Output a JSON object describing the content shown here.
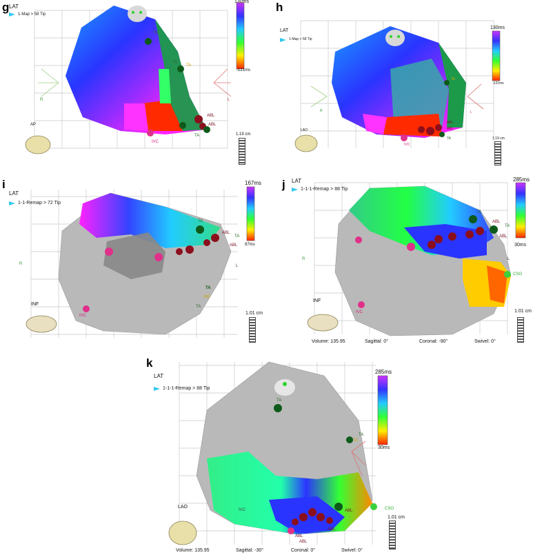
{
  "panels": {
    "g": {
      "letter": "g",
      "lat": "LAT",
      "map": "1-Map > 58 Tip",
      "cb_top": "130ms",
      "cb_bottom": "-121ms",
      "scale": "1.19 cm",
      "view": "AP",
      "labels": {
        "ta1": "TA",
        "ta2": "TA",
        "ta3": "TA",
        "ta4": "TA",
        "abl1": "ABL",
        "abl2": "ABL",
        "ivc": "IVC",
        "r": "R",
        "l": "L"
      }
    },
    "h": {
      "letter": "h",
      "lat": "LAT",
      "map": "1-Map > 58 Tip",
      "cb_top": "130ms",
      "cb_bottom": "-121ms",
      "scale": "1.19 cm",
      "view": "LAO",
      "labels": {
        "ta1": "TA",
        "ta2": "TA",
        "abl1": "ABL",
        "abl2": "ABL",
        "ivc": "IVC",
        "r": "R",
        "l": "L"
      }
    },
    "i": {
      "letter": "i",
      "lat": "LAT",
      "map": "1-1-Remap > 72 Tip",
      "cb_top": "167ms",
      "cb_bottom": "87ms",
      "scale": "1.01 cm",
      "view": "INF",
      "labels": {
        "ta1": "TA",
        "ta2": "TA",
        "ta3": "TA",
        "ta4": "TA",
        "abl1": "ABL",
        "abl2": "ABL",
        "his": "HIS",
        "ivc": "IVC",
        "r": "R",
        "l": "L"
      }
    },
    "j": {
      "letter": "j",
      "lat": "LAT",
      "map": "1-1-1-Remap > 88 Tip",
      "cb_top": "285ms",
      "cb_bottom": "30ms",
      "scale": "1.01 cm",
      "view": "INF",
      "labels": {
        "ta1": "TA",
        "ta2": "TA",
        "abl1": "ABL",
        "abl2": "ABL",
        "cso": "CSO",
        "ivc": "IVC",
        "r": "R",
        "l": "L"
      },
      "footer": {
        "volume": "Volume: 135.95",
        "sagittal": "Sagittal: 0°",
        "coronal": "Coronal: -90°",
        "swivel": "Swivel: 0°"
      }
    },
    "k": {
      "letter": "k",
      "lat": "LAT",
      "map": "1-1-1-Remap > 88 Tip",
      "cb_top": "285ms",
      "cb_bottom": "30ms",
      "scale": "1.01 cm",
      "view": "LAO",
      "labels": {
        "ta1": "TA",
        "ta2": "TA",
        "ta3": "TA",
        "abl1": "ABL",
        "abl2": "ABL",
        "abl3": "ABL",
        "abl4": "ABL",
        "cso": "CSO",
        "ivc": "IVC"
      },
      "footer": {
        "volume": "Volume: 135.95",
        "sagittal": "Sagittal: -30°",
        "coronal": "Coronal: 0°",
        "swivel": "Swivel: 0°"
      }
    }
  },
  "colors": {
    "rainbow_top": "#cc33ff",
    "rainbow_bottom": "#ff2200",
    "tissue": "#b9b9b9",
    "abl_marker": "#8b0f1c",
    "ta_marker": "#0e5a1a",
    "ivc_marker": "#e0308a",
    "cso_marker": "#3ad13a",
    "arrow": "#33c8f0"
  }
}
